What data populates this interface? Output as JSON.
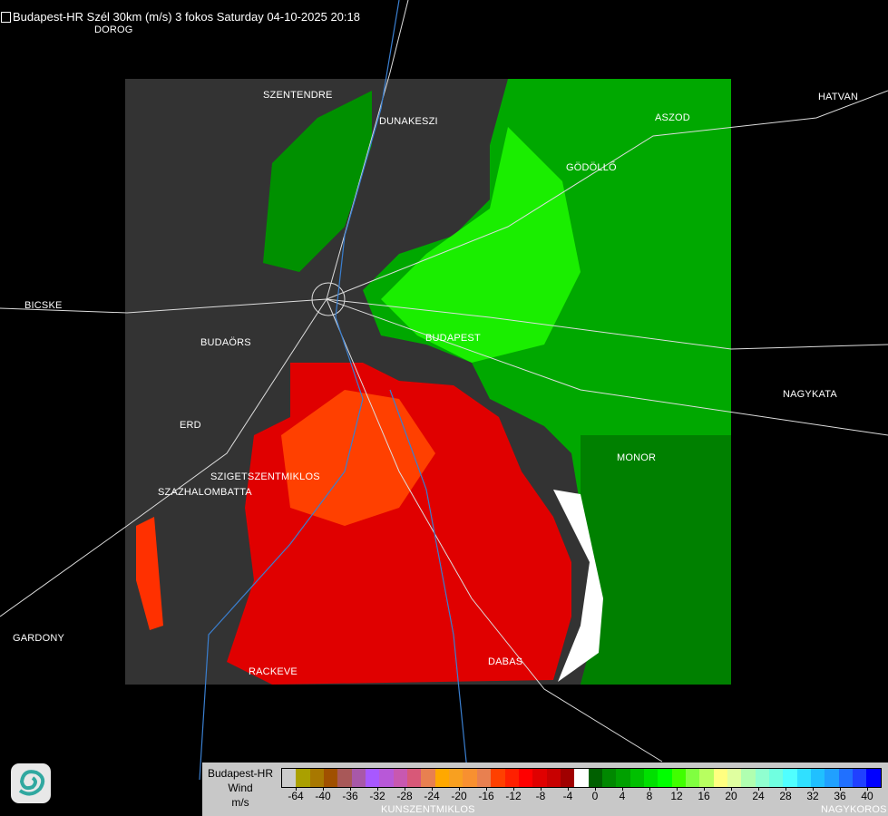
{
  "title": "Budapest-HR Szél 30km (m/s) 3 fokos Saturday 04-10-2025 20:18",
  "places": [
    "DOROG",
    "SZENTENDRE",
    "DUNAKESZI",
    "ASZOD",
    "HATVAN",
    "GÖDÖLLŐ",
    "BICSKE",
    "BUDAÖRS",
    "BUDAPEST",
    "NAGYKATA",
    "ERD",
    "MONOR",
    "SZIGETSZENTMIKLOS",
    "SZAZHALOMBATTA",
    "GARDONY",
    "RACKEVE",
    "DABAS",
    "KUNSZENTMIKLOS",
    "NAGYKOROS"
  ],
  "legend": {
    "station": "Budapest-HR",
    "quantity": "Wind",
    "unit": "m/s",
    "colors": [
      "#cccccc",
      "#aaa000",
      "#a87800",
      "#a05000",
      "#a85858",
      "#a858a8",
      "#a858ff",
      "#b858d8",
      "#c858b0",
      "#d85878",
      "#e88050",
      "#ffa800",
      "#f8a020",
      "#f89030",
      "#e88050",
      "#ff4000",
      "#ff2000",
      "#ff0000",
      "#e00000",
      "#c80000",
      "#a00000",
      "#ffffff",
      "#006000",
      "#008800",
      "#00a000",
      "#00c000",
      "#00e000",
      "#00ff00",
      "#40ff00",
      "#80ff40",
      "#b8ff60",
      "#ffff80",
      "#e0ffa0",
      "#b0ffb0",
      "#90ffd0",
      "#70ffe0",
      "#50ffff",
      "#30e0ff",
      "#20c0ff",
      "#20a0ff",
      "#2070ff",
      "#2040ff",
      "#0000ff"
    ],
    "ticks": [
      "-64",
      "-40",
      "-36",
      "-32",
      "-28",
      "-24",
      "-20",
      "-16",
      "-12",
      "-8",
      "-4",
      "0",
      "4",
      "8",
      "12",
      "16",
      "20",
      "24",
      "28",
      "32",
      "36",
      "40"
    ]
  },
  "colors": {
    "no_echo": "#333333",
    "approaching": "#ff2000",
    "receding": "#00c000",
    "background": "#000000"
  }
}
